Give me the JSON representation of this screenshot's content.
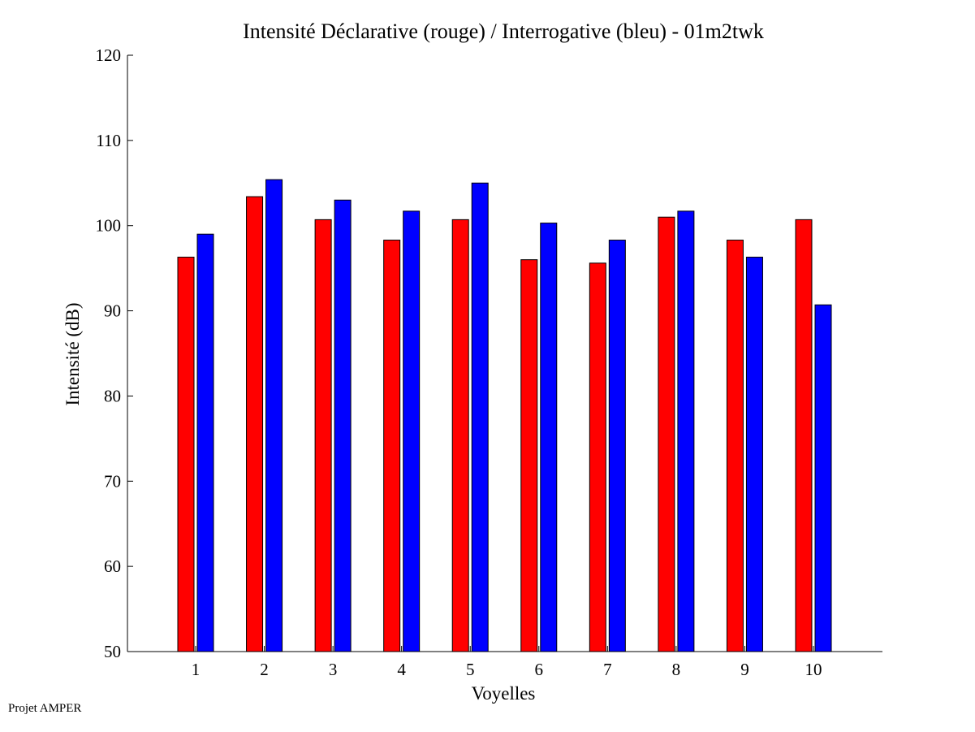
{
  "chart_data": {
    "type": "bar",
    "title": "Intensité Déclarative (rouge) / Interrogative (bleu) - 01m2twk",
    "xlabel": "Voyelles",
    "ylabel": "Intensité (dB)",
    "ylim": [
      50,
      120
    ],
    "yticks": [
      50,
      60,
      70,
      80,
      90,
      100,
      110,
      120
    ],
    "categories": [
      "1",
      "2",
      "3",
      "4",
      "5",
      "6",
      "7",
      "8",
      "9",
      "10"
    ],
    "series": [
      {
        "color": "#ff0000",
        "values": [
          96.3,
          103.4,
          100.7,
          98.3,
          100.7,
          96.0,
          95.6,
          101.0,
          98.3,
          100.7
        ]
      },
      {
        "color": "#0000ff",
        "values": [
          99.0,
          105.4,
          103.0,
          101.7,
          105.0,
          100.3,
          98.3,
          101.7,
          96.3,
          90.7
        ]
      }
    ],
    "grid": false
  },
  "footer": "Projet AMPER"
}
